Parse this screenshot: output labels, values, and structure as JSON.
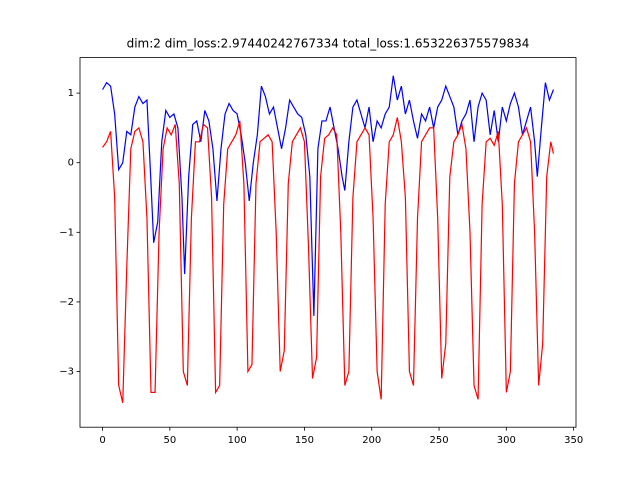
{
  "chart_data": {
    "type": "line",
    "title": "dim:2 dim_loss:2.97440242767334 total_loss:1.653226375579834",
    "xlim": [
      -16.75,
      351.75
    ],
    "ylim": [
      -3.8,
      1.51
    ],
    "xticks": [
      0,
      50,
      100,
      150,
      200,
      250,
      300,
      350
    ],
    "yticks": [
      {
        "value": -3,
        "label": "−3"
      },
      {
        "value": -2,
        "label": "−2"
      },
      {
        "value": -1,
        "label": "−1"
      },
      0,
      1
    ],
    "series": [
      {
        "color": "#0000ff",
        "x": [
          0,
          3,
          6,
          9,
          12,
          15,
          18,
          21,
          24,
          27,
          30,
          33,
          36,
          38,
          41,
          44,
          47,
          50,
          53,
          56,
          59,
          61,
          64,
          67,
          70,
          73,
          76,
          79,
          82,
          85,
          88,
          91,
          94,
          97,
          100,
          103,
          106,
          109,
          112,
          115,
          118,
          121,
          124,
          127,
          130,
          133,
          136,
          139,
          142,
          145,
          148,
          151,
          154,
          157,
          160,
          163,
          166,
          169,
          172,
          175,
          178,
          180,
          183,
          186,
          189,
          192,
          195,
          198,
          201,
          204,
          207,
          210,
          213,
          216,
          219,
          222,
          225,
          228,
          231,
          234,
          237,
          240,
          243,
          246,
          249,
          252,
          255,
          258,
          261,
          264,
          267,
          270,
          273,
          276,
          279,
          282,
          285,
          288,
          291,
          294,
          297,
          300,
          303,
          306,
          309,
          312,
          315,
          318,
          321,
          323,
          326,
          329,
          332,
          335
        ],
        "values": [
          1.05,
          1.15,
          1.1,
          0.7,
          -0.1,
          0.0,
          0.45,
          0.4,
          0.8,
          0.95,
          0.85,
          0.9,
          -0.3,
          -1.15,
          -0.85,
          0.3,
          0.75,
          0.65,
          0.7,
          0.5,
          -0.5,
          -1.6,
          -0.2,
          0.55,
          0.6,
          0.3,
          0.75,
          0.6,
          0.2,
          -0.55,
          0.2,
          0.7,
          0.85,
          0.75,
          0.7,
          0.4,
          0.0,
          -0.55,
          0.0,
          0.4,
          1.1,
          0.95,
          0.7,
          0.8,
          0.5,
          0.2,
          0.5,
          0.9,
          0.8,
          0.7,
          0.65,
          0.4,
          -0.2,
          -2.2,
          0.2,
          0.6,
          0.6,
          0.8,
          0.5,
          0.2,
          -0.2,
          -0.4,
          0.3,
          0.8,
          0.9,
          0.7,
          0.5,
          0.8,
          0.3,
          0.6,
          0.5,
          0.7,
          0.8,
          1.25,
          0.9,
          1.1,
          0.7,
          0.9,
          0.6,
          0.35,
          0.7,
          0.6,
          0.8,
          0.5,
          0.8,
          0.9,
          1.1,
          0.95,
          0.8,
          0.4,
          0.6,
          0.7,
          0.9,
          0.3,
          0.8,
          1.0,
          0.9,
          0.4,
          0.75,
          0.3,
          0.8,
          0.6,
          0.85,
          1.0,
          0.8,
          0.4,
          0.6,
          0.8,
          0.3,
          -0.2,
          0.5,
          1.15,
          0.9,
          1.05
        ]
      },
      {
        "color": "#ff0000",
        "x": [
          0,
          3,
          6,
          9,
          12,
          15,
          18,
          21,
          24,
          27,
          30,
          33,
          36,
          39,
          42,
          45,
          48,
          51,
          54,
          57,
          60,
          63,
          66,
          69,
          72,
          75,
          78,
          81,
          84,
          87,
          90,
          93,
          96,
          99,
          102,
          105,
          108,
          111,
          114,
          117,
          120,
          123,
          126,
          129,
          132,
          135,
          138,
          141,
          144,
          147,
          150,
          153,
          156,
          159,
          162,
          165,
          168,
          171,
          174,
          177,
          180,
          183,
          186,
          189,
          192,
          195,
          198,
          201,
          204,
          207,
          210,
          213,
          216,
          219,
          222,
          225,
          228,
          231,
          234,
          237,
          240,
          243,
          246,
          249,
          252,
          255,
          258,
          261,
          264,
          267,
          270,
          273,
          276,
          279,
          282,
          285,
          288,
          291,
          294,
          297,
          300,
          303,
          306,
          309,
          312,
          315,
          318,
          321,
          324,
          327,
          330,
          333,
          335
        ],
        "values": [
          0.22,
          0.3,
          0.45,
          -0.5,
          -3.2,
          -3.45,
          -1.5,
          0.2,
          0.45,
          0.5,
          0.3,
          -0.8,
          -3.3,
          -3.3,
          -1.0,
          0.2,
          0.5,
          0.4,
          0.55,
          -0.3,
          -3.0,
          -3.2,
          -0.8,
          0.3,
          0.3,
          0.55,
          0.5,
          -0.5,
          -3.3,
          -3.2,
          -0.6,
          0.2,
          0.3,
          0.4,
          0.6,
          -0.3,
          -3.0,
          -2.9,
          -0.3,
          0.3,
          0.35,
          0.4,
          0.3,
          -1.0,
          -3.0,
          -2.7,
          -0.3,
          0.3,
          0.4,
          0.5,
          0.3,
          -1.2,
          -3.1,
          -2.8,
          -0.2,
          0.35,
          0.4,
          0.5,
          0.4,
          -1.0,
          -3.2,
          -3.0,
          -0.5,
          0.3,
          0.4,
          0.5,
          0.4,
          -0.8,
          -3.0,
          -3.4,
          -0.6,
          0.3,
          0.4,
          0.65,
          0.3,
          -0.5,
          -3.0,
          -3.2,
          -0.8,
          0.3,
          0.4,
          0.5,
          0.5,
          -0.8,
          -3.1,
          -2.6,
          -0.2,
          0.3,
          0.4,
          0.55,
          0.2,
          -1.0,
          -3.2,
          -3.4,
          -0.6,
          0.3,
          0.35,
          0.25,
          0.45,
          -0.6,
          -3.3,
          -3.0,
          -0.3,
          0.3,
          0.4,
          0.5,
          0.3,
          -1.0,
          -3.2,
          -2.6,
          -0.2,
          0.3,
          0.13
        ]
      }
    ]
  }
}
